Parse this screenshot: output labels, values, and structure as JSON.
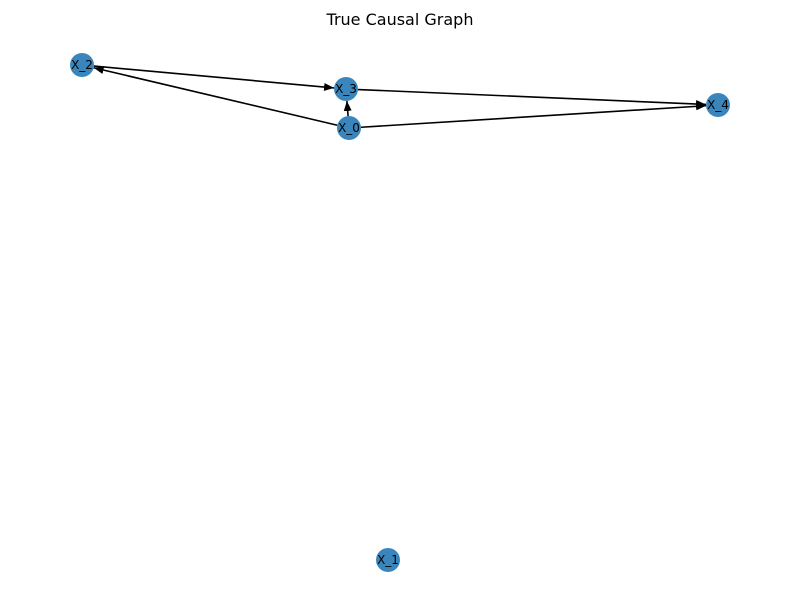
{
  "title": "True Causal Graph",
  "colors": {
    "node": "#3a86bc",
    "edge": "#000000",
    "label": "#000000",
    "background": "#ffffff"
  },
  "nodes": [
    {
      "id": "X_0",
      "label": "X_0"
    },
    {
      "id": "X_1",
      "label": "X_1"
    },
    {
      "id": "X_2",
      "label": "X_2"
    },
    {
      "id": "X_3",
      "label": "X_3"
    },
    {
      "id": "X_4",
      "label": "X_4"
    }
  ],
  "edges": [
    {
      "source": "X_0",
      "target": "X_2"
    },
    {
      "source": "X_0",
      "target": "X_3"
    },
    {
      "source": "X_0",
      "target": "X_4"
    },
    {
      "source": "X_2",
      "target": "X_3"
    },
    {
      "source": "X_3",
      "target": "X_4"
    }
  ]
}
